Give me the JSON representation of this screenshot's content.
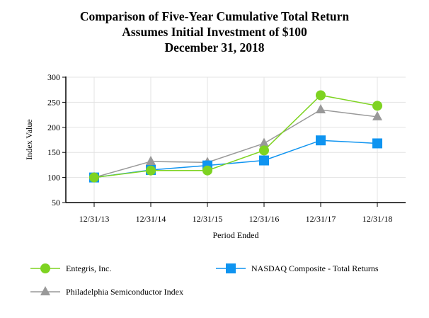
{
  "chart_data": {
    "type": "line",
    "title": [
      "Comparison of Five-Year Cumulative Total Return",
      "Assumes Initial Investment of $100",
      "December 31, 2018"
    ],
    "xlabel": "Period Ended",
    "ylabel": "Index Value",
    "categories": [
      "12/31/13",
      "12/31/14",
      "12/31/15",
      "12/31/16",
      "12/31/17",
      "12/31/18"
    ],
    "ylim": [
      50,
      300
    ],
    "yticks": [
      50,
      100,
      150,
      200,
      250,
      300
    ],
    "grid": true,
    "legend_position": "bottom",
    "series": [
      {
        "name": "Entegris, Inc.",
        "values": [
          100,
          114,
          114,
          154,
          264,
          243
        ],
        "color": "#7ed321",
        "marker": "circle"
      },
      {
        "name": "NASDAQ Composite - Total Returns",
        "values": [
          100,
          115,
          124,
          134,
          174,
          168
        ],
        "color": "#0f94f0",
        "marker": "square"
      },
      {
        "name": "Philadelphia Semiconductor Index",
        "values": [
          100,
          132,
          130,
          168,
          235,
          221
        ],
        "color": "#999999",
        "marker": "triangle"
      }
    ]
  }
}
